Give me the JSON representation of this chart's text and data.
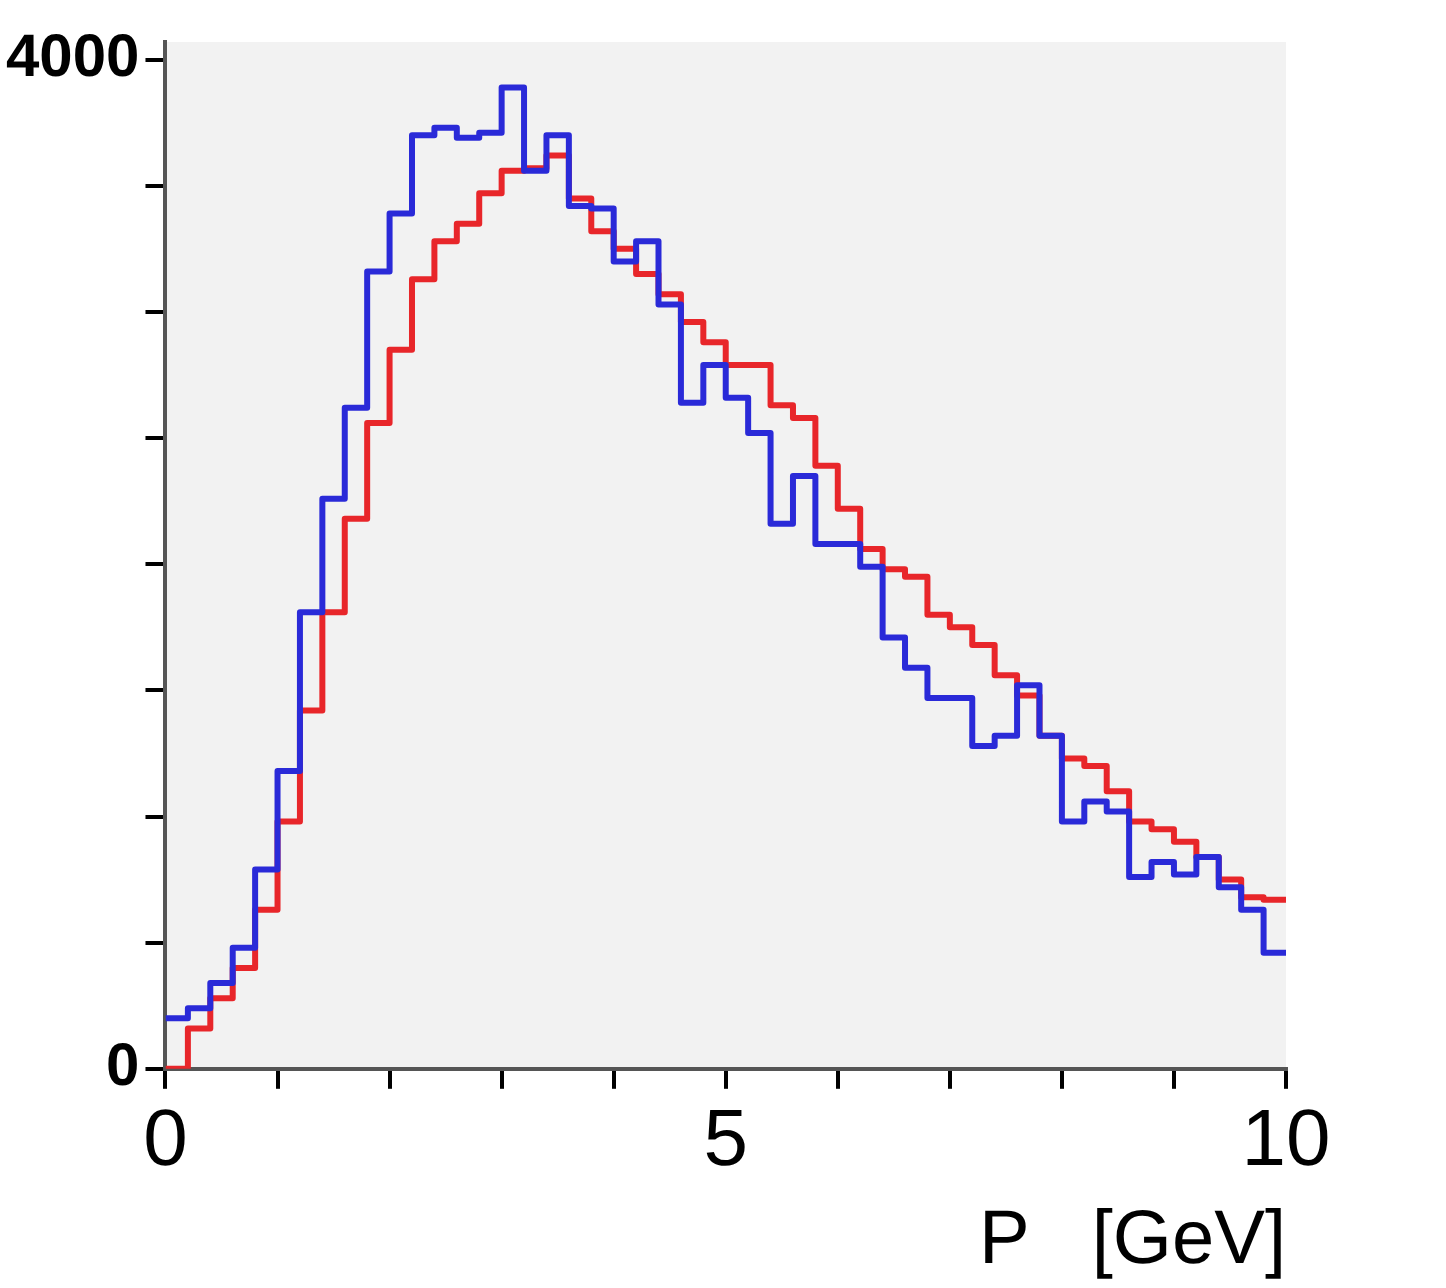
{
  "chart_data": {
    "type": "histogram",
    "xlabel": "P   [GeV]",
    "bins": [
      0,
      0.2,
      0.4,
      0.6,
      0.8,
      1,
      1.2,
      1.4,
      1.6,
      1.8,
      2,
      2.2,
      2.4,
      2.6,
      2.8,
      3,
      3.2,
      3.4,
      3.6,
      3.8,
      4,
      4.2,
      4.4,
      4.6,
      4.8,
      5,
      5.2,
      5.4,
      5.6,
      5.8,
      6,
      6.2,
      6.4,
      6.6,
      6.8,
      7,
      7.2,
      7.4,
      7.6,
      7.8,
      8,
      8.2,
      8.4,
      8.6,
      8.8,
      9,
      9.2,
      9.4,
      9.6,
      9.8,
      10
    ],
    "series": [
      {
        "color": "#2a2ad8",
        "values": [
          200,
          240,
          340,
          480,
          790,
          1180,
          1810,
          2260,
          2620,
          3160,
          3390,
          3700,
          3730,
          3690,
          3710,
          3890,
          3560,
          3700,
          3420,
          3410,
          3200,
          3280,
          3030,
          2640,
          2790,
          2660,
          2520,
          2160,
          2350,
          2080,
          2080,
          1990,
          1710,
          1590,
          1470,
          1470,
          1280,
          1320,
          1520,
          1320,
          980,
          1060,
          1020,
          760,
          820,
          770,
          840,
          720,
          630,
          460
        ]
      },
      {
        "color": "#e8262a",
        "values": [
          0,
          160,
          280,
          400,
          630,
          980,
          1420,
          1810,
          2180,
          2560,
          2850,
          3130,
          3280,
          3350,
          3470,
          3560,
          3570,
          3620,
          3450,
          3320,
          3250,
          3150,
          3070,
          2960,
          2880,
          2790,
          2790,
          2630,
          2580,
          2390,
          2220,
          2060,
          1980,
          1950,
          1800,
          1750,
          1680,
          1560,
          1480,
          1320,
          1230,
          1200,
          1100,
          980,
          950,
          900,
          840,
          750,
          680,
          670
        ]
      }
    ],
    "xlim": [
      0,
      10
    ],
    "xticks": [
      0,
      {
        "value": 1,
        "label": null
      },
      {
        "value": 2,
        "label": null
      },
      {
        "value": 3,
        "label": null
      },
      {
        "value": 4,
        "label": null
      },
      5,
      {
        "value": 6,
        "label": null
      },
      {
        "value": 7,
        "label": null
      },
      {
        "value": 8,
        "label": null
      },
      {
        "value": 9,
        "label": null
      },
      10
    ],
    "ylim": [
      0,
      4070
    ],
    "yticks": [
      0,
      {
        "value": 500,
        "label": null
      },
      {
        "value": 1000,
        "label": null
      },
      {
        "value": 1500,
        "label": null
      },
      {
        "value": 2000,
        "label": null
      },
      {
        "value": 2500,
        "label": null
      },
      {
        "value": 3000,
        "label": null
      },
      {
        "value": 3500,
        "label": null
      },
      4000
    ],
    "grid": false,
    "legend": false
  }
}
